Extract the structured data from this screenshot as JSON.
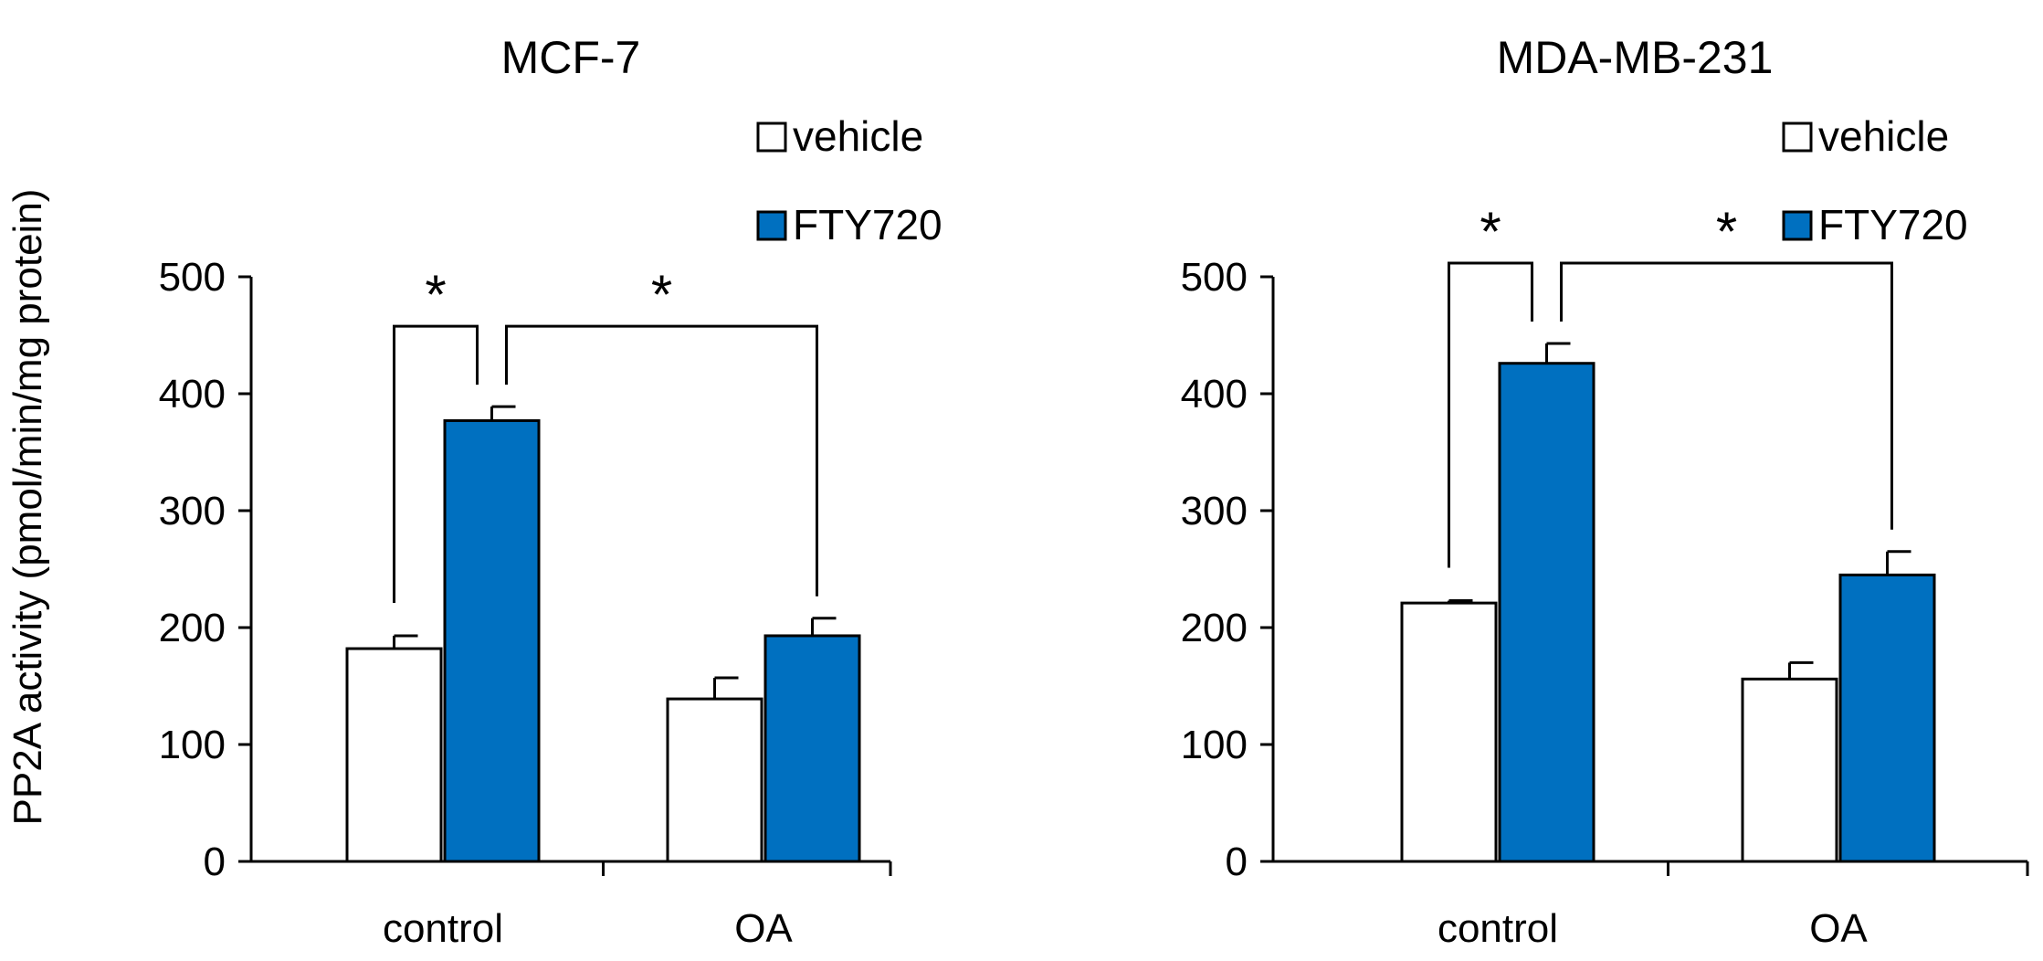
{
  "figure": {
    "ylabel": "PP2A activity (pmol/min/mg  protein)",
    "colors": {
      "vehicle": "#ffffff",
      "FTY720": "#0070c0",
      "axis": "#000000"
    }
  },
  "chart_data": [
    {
      "type": "bar",
      "title": "MCF-7",
      "categories": [
        "control",
        "OA"
      ],
      "series": [
        {
          "name": "vehicle",
          "values": [
            182,
            139
          ],
          "errors": [
            11,
            18
          ]
        },
        {
          "name": "FTY720",
          "values": [
            377,
            193
          ],
          "errors": [
            12,
            15
          ]
        }
      ],
      "ylim": [
        0,
        500
      ],
      "yticks": [
        "0",
        "100",
        "200",
        "300",
        "400",
        "500"
      ],
      "legend": [
        "vehicle",
        "FTY720"
      ],
      "legend_position": "top-right",
      "significance": [
        {
          "from": "vehicle-control",
          "to": "FTY720-control",
          "label": "*"
        },
        {
          "from": "FTY720-control",
          "to": "FTY720-OA",
          "label": "*"
        }
      ]
    },
    {
      "type": "bar",
      "title": "MDA-MB-231",
      "categories": [
        "control",
        "OA"
      ],
      "series": [
        {
          "name": "vehicle",
          "values": [
            221,
            156
          ],
          "errors": [
            2,
            14
          ]
        },
        {
          "name": "FTY720",
          "values": [
            426,
            245
          ],
          "errors": [
            17,
            20
          ]
        }
      ],
      "ylim": [
        0,
        500
      ],
      "yticks": [
        "0",
        "100",
        "200",
        "300",
        "400",
        "500"
      ],
      "legend": [
        "vehicle",
        "FTY720"
      ],
      "legend_position": "top-right",
      "significance": [
        {
          "from": "vehicle-control",
          "to": "FTY720-control",
          "label": "*"
        },
        {
          "from": "FTY720-control",
          "to": "FTY720-OA",
          "label": "*"
        }
      ]
    }
  ]
}
